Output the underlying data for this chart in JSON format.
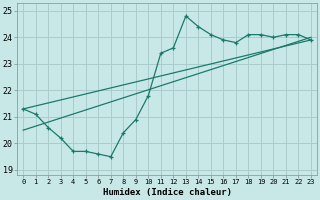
{
  "xlabel": "Humidex (Indice chaleur)",
  "ylabel": "",
  "xlim": [
    -0.5,
    23.5
  ],
  "ylim": [
    18.8,
    25.3
  ],
  "bg_color": "#c8e8e8",
  "grid_color": "#aacccc",
  "line_color": "#1a7a6a",
  "hours": [
    0,
    1,
    2,
    3,
    4,
    5,
    6,
    7,
    8,
    9,
    10,
    11,
    12,
    13,
    14,
    15,
    16,
    17,
    18,
    19,
    20,
    21,
    22,
    23
  ],
  "curve1": [
    21.3,
    21.1,
    20.6,
    20.2,
    19.7,
    19.7,
    19.6,
    19.5,
    20.4,
    20.9,
    21.8,
    23.4,
    23.6,
    24.8,
    24.4,
    24.1,
    23.9,
    23.8,
    24.1,
    24.1,
    24.0,
    24.1,
    24.1,
    23.9
  ],
  "diag_line1_x": [
    0,
    23
  ],
  "diag_line1_y": [
    21.3,
    23.9
  ],
  "diag_line2_x": [
    0,
    23
  ],
  "diag_line2_y": [
    20.5,
    24.0
  ],
  "xtick_labels": [
    "0",
    "1",
    "2",
    "3",
    "4",
    "5",
    "6",
    "7",
    "8",
    "9",
    "10",
    "11",
    "12",
    "13",
    "14",
    "15",
    "16",
    "17",
    "18",
    "19",
    "20",
    "21",
    "22",
    "23"
  ],
  "ytick_values": [
    19,
    20,
    21,
    22,
    23,
    24,
    25
  ]
}
